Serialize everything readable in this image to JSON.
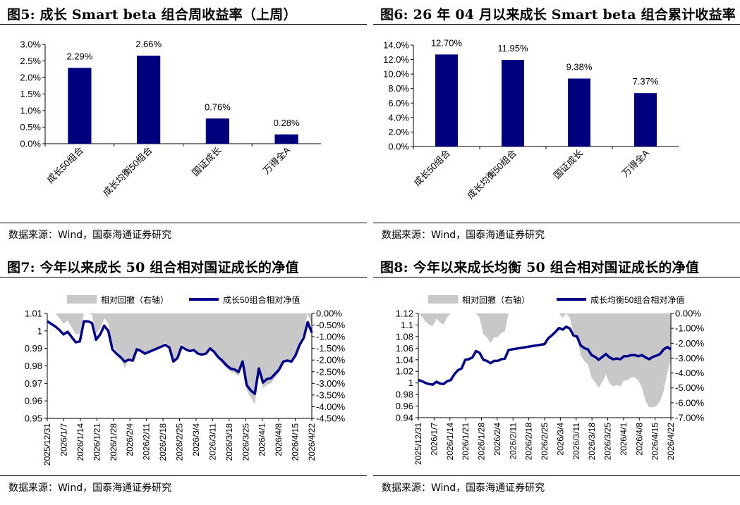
{
  "source_text": "数据来源：Wind，国泰海通证券研究",
  "colors": {
    "bar": "#00007F",
    "line": "#00008B",
    "area": "#C8C8C8"
  },
  "chart_data": [
    {
      "id": "fig5",
      "type": "bar",
      "title": "图5:  成长 Smart beta 组合周收益率（上周）",
      "categories": [
        "成长50组合",
        "成长均衡50组合",
        "国证成长",
        "万得全A"
      ],
      "values": [
        2.29,
        2.66,
        0.76,
        0.28
      ],
      "value_labels": [
        "2.29%",
        "2.66%",
        "0.76%",
        "0.28%"
      ],
      "ylim": [
        0,
        3.0
      ],
      "yticks": [
        "0.0%",
        "0.5%",
        "1.0%",
        "1.5%",
        "2.0%",
        "2.5%",
        "3.0%"
      ],
      "ylabel": "",
      "xlabel": ""
    },
    {
      "id": "fig6",
      "type": "bar",
      "title": "图6:  26 年 04 月以来成长 Smart beta 组合累计收益率",
      "categories": [
        "成长50组合",
        "成长均衡50组合",
        "国证成长",
        "万得全A"
      ],
      "values": [
        12.7,
        11.95,
        9.38,
        7.37
      ],
      "value_labels": [
        "12.70%",
        "11.95%",
        "9.38%",
        "7.37%"
      ],
      "ylim": [
        0,
        14.0
      ],
      "yticks": [
        "0.0%",
        "2.0%",
        "4.0%",
        "6.0%",
        "8.0%",
        "10.0%",
        "12.0%",
        "14.0%"
      ],
      "ylabel": "",
      "xlabel": ""
    },
    {
      "id": "fig7",
      "type": "line",
      "title": "图7:  今年以来成长 50 组合相对国证成长的净值",
      "legend": [
        "相对回撤（右轴）",
        "成长50组合相对净值"
      ],
      "x_labels": [
        "2025/12/31",
        "2026/1/7",
        "2026/1/14",
        "2026/1/21",
        "2026/1/28",
        "2026/2/4",
        "2026/2/11",
        "2026/2/18",
        "2026/2/25",
        "2026/3/4",
        "2026/3/11",
        "2026/3/18",
        "2026/3/25",
        "2026/4/1",
        "2026/4/8",
        "2026/4/15",
        "2026/4/22"
      ],
      "left_ylim": [
        0.95,
        1.01
      ],
      "left_yticks": [
        "0.95",
        "0.96",
        "0.97",
        "0.98",
        "0.99",
        "1",
        "1.01"
      ],
      "right_ylim": [
        -4.5,
        0
      ],
      "right_yticks": [
        "0.00%",
        "-0.50%",
        "-1.00%",
        "-1.50%",
        "-2.00%",
        "-2.50%",
        "-3.00%",
        "-3.50%",
        "-4.00%",
        "-4.50%"
      ],
      "series": [
        {
          "name": "成长50组合相对净值",
          "axis": "left",
          "values": [
            1.0055,
            1.004,
            1.0025,
            1.0005,
            0.998,
            0.9995,
            0.9965,
            0.9935,
            0.994,
            1.0055,
            1.0055,
            1.0045,
            0.995,
            0.998,
            1.003,
            1.0,
            0.9895,
            0.987,
            0.985,
            0.9825,
            0.9835,
            0.983,
            0.9895,
            0.9885,
            0.987,
            0.988,
            0.989,
            0.99,
            0.991,
            0.992,
            0.9905,
            0.9825,
            0.9845,
            0.991,
            0.9895,
            0.9885,
            0.989,
            0.987,
            0.9865,
            0.987,
            0.99,
            0.988,
            0.985,
            0.983,
            0.9805,
            0.9785,
            0.978,
            0.9765,
            0.9825,
            0.969,
            0.966,
            0.964,
            0.9785,
            0.9705,
            0.9725,
            0.973,
            0.9755,
            0.978,
            0.9825,
            0.983,
            0.9825,
            0.986,
            0.992,
            0.996,
            1.005,
            0.999
          ]
        },
        {
          "name": "相对回撤（右轴）",
          "axis": "right",
          "values": [
            0,
            0,
            0,
            -0.2,
            -0.45,
            -0.3,
            -0.6,
            -0.9,
            -0.85,
            0,
            0,
            -0.05,
            -0.9,
            -0.65,
            -0.2,
            -0.45,
            -1.35,
            -1.6,
            -1.8,
            -2.35,
            -2.0,
            -2.05,
            -1.5,
            -1.6,
            -1.75,
            -1.65,
            -1.55,
            -1.45,
            -1.35,
            -1.25,
            -1.4,
            -2.1,
            -1.9,
            -1.3,
            -1.45,
            -1.55,
            -1.5,
            -1.7,
            -1.75,
            -1.7,
            -1.45,
            -1.65,
            -1.95,
            -2.15,
            -2.35,
            -2.5,
            -2.55,
            -2.7,
            -2.15,
            -3.3,
            -3.6,
            -3.9,
            -2.5,
            -3.2,
            -3.05,
            -3.0,
            -2.75,
            -2.55,
            -2.1,
            -2.05,
            -2.1,
            -1.8,
            -1.25,
            -0.85,
            0,
            -0.5
          ]
        }
      ]
    },
    {
      "id": "fig8",
      "type": "line",
      "title": "图8:  今年以来成长均衡 50 组合相对国证成长的净值",
      "legend": [
        "相对回撤（右轴）",
        "成长均衡50组合相对净值"
      ],
      "x_labels": [
        "2025/12/31",
        "2026/1/7",
        "2026/1/14",
        "2026/1/21",
        "2026/1/28",
        "2026/2/4",
        "2026/2/11",
        "2026/2/18",
        "2026/2/25",
        "2026/3/4",
        "2026/3/11",
        "2026/3/18",
        "2026/3/25",
        "2026/4/1",
        "2026/4/8",
        "2026/4/15",
        "2026/4/22"
      ],
      "left_ylim": [
        0.94,
        1.12
      ],
      "left_yticks": [
        "0.94",
        "0.96",
        "0.98",
        "1",
        "1.02",
        "1.04",
        "1.06",
        "1.08",
        "1.1",
        "1.12"
      ],
      "right_ylim": [
        -7,
        0
      ],
      "right_yticks": [
        "0.00%",
        "-1.00%",
        "-2.00%",
        "-3.00%",
        "-4.00%",
        "-5.00%",
        "-6.00%",
        "-7.00%"
      ],
      "series": [
        {
          "name": "成长均衡50组合相对净值",
          "axis": "left",
          "values": [
            1.005,
            1.003,
            1.0,
            0.998,
            0.997,
            1.002,
            0.999,
            0.998,
            1.003,
            1.005,
            1.015,
            1.022,
            1.025,
            1.04,
            1.041,
            1.044,
            1.055,
            1.052,
            1.04,
            1.038,
            1.034,
            1.038,
            1.038,
            1.041,
            1.042,
            1.057,
            1.058,
            1.059,
            1.06,
            1.061,
            1.062,
            1.063,
            1.064,
            1.065,
            1.066,
            1.067,
            1.077,
            1.082,
            1.088,
            1.095,
            1.092,
            1.097,
            1.094,
            1.082,
            1.08,
            1.065,
            1.06,
            1.058,
            1.048,
            1.045,
            1.04,
            1.045,
            1.05,
            1.044,
            1.041,
            1.042,
            1.041,
            1.046,
            1.046,
            1.048,
            1.048,
            1.046,
            1.048,
            1.044,
            1.041,
            1.045,
            1.047,
            1.05,
            1.058,
            1.062,
            1.058
          ]
        },
        {
          "name": "相对回撤（右轴）",
          "axis": "right",
          "values": [
            0,
            -0.2,
            -0.55,
            -0.75,
            -0.85,
            -0.35,
            -0.6,
            -0.75,
            -0.25,
            0,
            0,
            0,
            0,
            0,
            0,
            0,
            0,
            -0.3,
            -1.4,
            -1.6,
            -2.0,
            -1.6,
            -1.6,
            -1.3,
            -1.2,
            0,
            0,
            0,
            0,
            0,
            0,
            0,
            0,
            0,
            0,
            0,
            0,
            0,
            0,
            0,
            -0.3,
            0,
            -0.3,
            -1.3,
            -1.5,
            -2.8,
            -3.2,
            -3.4,
            -4.3,
            -4.6,
            -5.0,
            -4.6,
            -4.1,
            -4.7,
            -4.9,
            -4.8,
            -4.9,
            -4.5,
            -4.5,
            -4.3,
            -4.3,
            -4.5,
            -5.0,
            -5.9,
            -6.3,
            -6.3,
            -6.2,
            -5.9,
            -5.2,
            -4.0,
            -3.1
          ]
        }
      ]
    }
  ]
}
